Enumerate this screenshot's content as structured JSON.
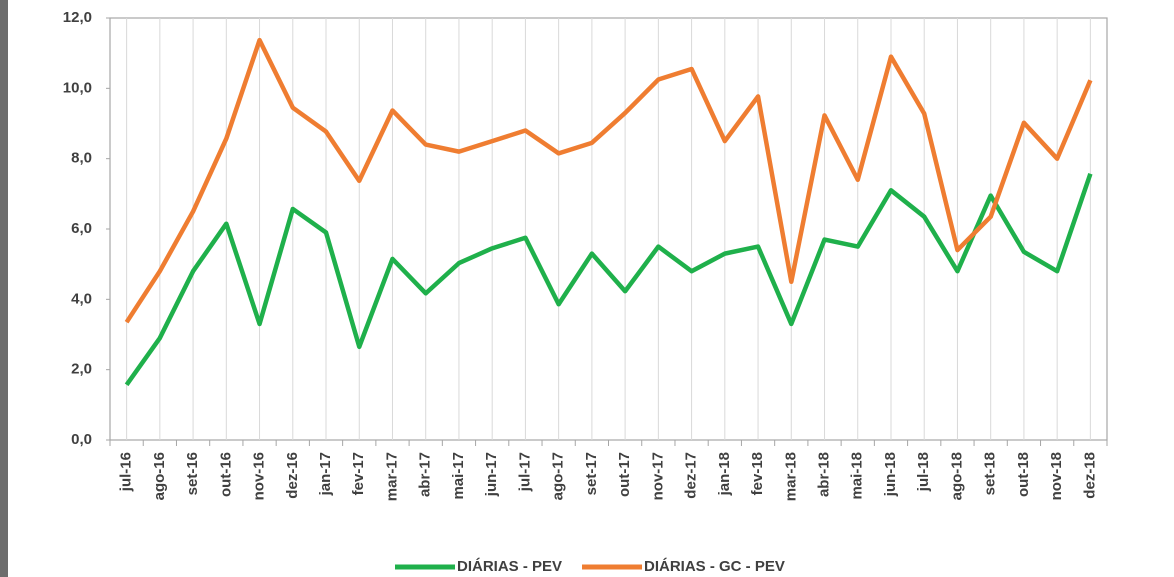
{
  "chart_data": {
    "type": "line",
    "categories": [
      "jul-16",
      "ago-16",
      "set-16",
      "out-16",
      "nov-16",
      "dez-16",
      "jan-17",
      "fev-17",
      "mar-17",
      "abr-17",
      "mai-17",
      "jun-17",
      "jul-17",
      "ago-17",
      "set-17",
      "out-17",
      "nov-17",
      "dez-17",
      "jan-18",
      "fev-18",
      "mar-18",
      "abr-18",
      "mai-18",
      "jun-18",
      "jul-18",
      "ago-18",
      "set-18",
      "out-18",
      "nov-18",
      "dez-18"
    ],
    "series": [
      {
        "name": "DIÁRIAS - PEV",
        "color": "#1fb04b",
        "values": [
          1.57,
          2.9,
          4.8,
          6.15,
          3.3,
          6.57,
          5.9,
          2.65,
          5.15,
          4.17,
          5.03,
          5.45,
          5.75,
          3.86,
          5.3,
          4.23,
          5.5,
          4.8,
          5.3,
          5.5,
          3.3,
          5.7,
          5.5,
          7.1,
          6.35,
          4.8,
          6.95,
          5.35,
          4.8,
          7.57
        ]
      },
      {
        "name": "DIÁRIAS - GC - PEV",
        "color": "#ef7d31",
        "values": [
          3.35,
          4.8,
          6.5,
          8.57,
          11.37,
          9.45,
          8.77,
          7.37,
          9.37,
          8.4,
          8.2,
          8.5,
          8.8,
          8.15,
          8.45,
          9.3,
          10.25,
          10.55,
          8.5,
          9.77,
          4.5,
          9.23,
          7.4,
          10.9,
          9.28,
          5.4,
          6.35,
          9.02,
          8.0,
          10.23
        ]
      }
    ],
    "ylim": [
      0,
      12
    ],
    "yticks": [
      {
        "value": 0,
        "label": "0,0"
      },
      {
        "value": 2,
        "label": "2,0"
      },
      {
        "value": 4,
        "label": "4,0"
      },
      {
        "value": 6,
        "label": "6,0"
      },
      {
        "value": 8,
        "label": "8,0"
      },
      {
        "value": 10,
        "label": "10,0"
      },
      {
        "value": 12,
        "label": "12,0"
      }
    ],
    "grid": true,
    "legend": "bottom"
  }
}
